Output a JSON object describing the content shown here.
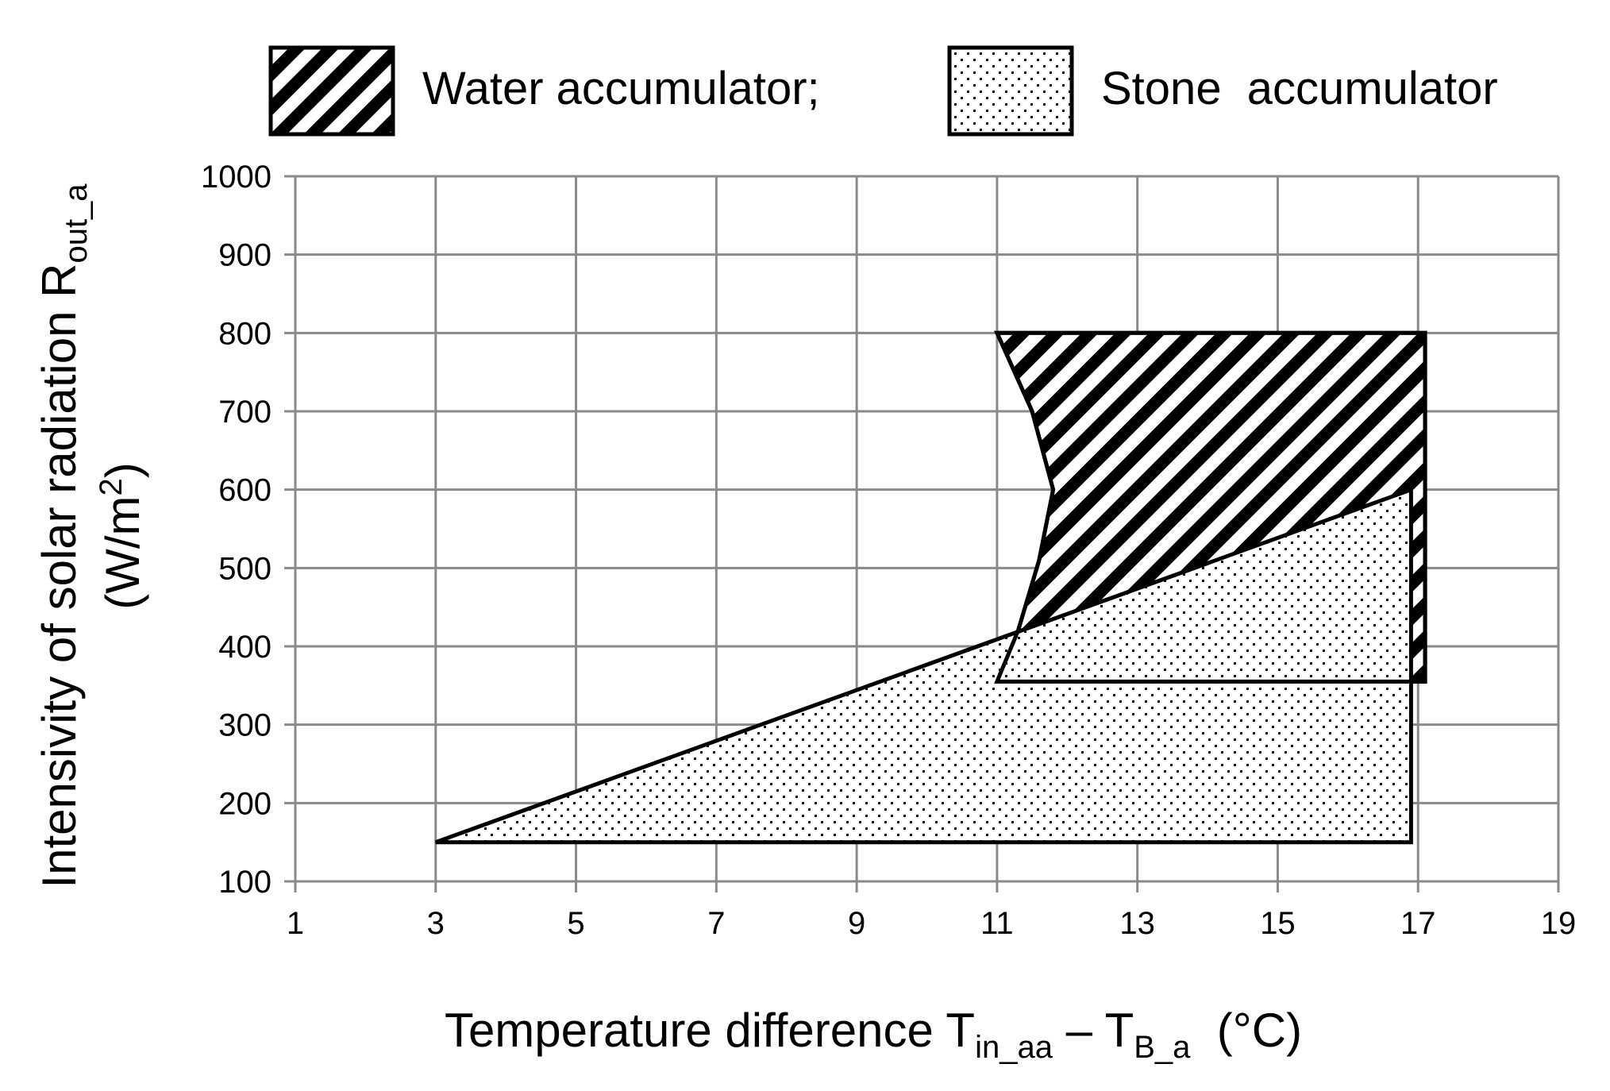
{
  "chart_data": {
    "type": "area",
    "xlabel": {
      "main": "Temperature difference T",
      "sub1": "in_aa",
      "mid": " – T",
      "sub2": "B_a",
      "end": "  (°C)"
    },
    "ylabel": {
      "line1_main": "Intensivity of solar radiation R",
      "line1_sub": "out_a",
      "line2_main": "(W/m",
      "line2_sup": "2",
      "line2_end": ")"
    },
    "xlim": [
      1,
      19
    ],
    "ylim": [
      100,
      1000
    ],
    "x_ticks": [
      "1",
      "3",
      "5",
      "7",
      "9",
      "11",
      "13",
      "15",
      "17",
      "19"
    ],
    "y_ticks": [
      "100",
      "200",
      "300",
      "400",
      "500",
      "600",
      "700",
      "800",
      "900",
      "1000"
    ],
    "grid": true,
    "legend_position": "top",
    "series": [
      {
        "name": "Water accumulator;",
        "pattern": "diagonal-hatch",
        "polygon": [
          {
            "x": 11.0,
            "y": 800
          },
          {
            "x": 17.1,
            "y": 800
          },
          {
            "x": 17.1,
            "y": 355
          },
          {
            "x": 11.0,
            "y": 355
          },
          {
            "x": 11.3,
            "y": 420
          },
          {
            "x": 11.6,
            "y": 510
          },
          {
            "x": 11.8,
            "y": 600
          },
          {
            "x": 11.5,
            "y": 700
          }
        ]
      },
      {
        "name": "Stone  accumulator",
        "pattern": "dots",
        "polygon": [
          {
            "x": 3.0,
            "y": 150
          },
          {
            "x": 16.9,
            "y": 600
          },
          {
            "x": 16.9,
            "y": 150
          }
        ]
      }
    ]
  },
  "colors": {
    "grid": "#8a8a8a",
    "outline": "#000000",
    "background": "#ffffff"
  }
}
